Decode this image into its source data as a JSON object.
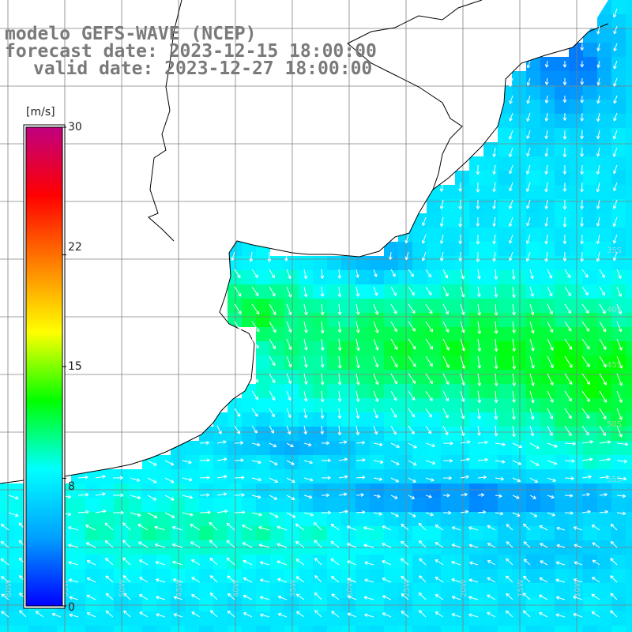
{
  "title": {
    "line1": "modelo GEFS-WAVE (NCEP)",
    "line2": "forecast date: 2023-12-15 18:00:00",
    "line3": "valid date: 2023-12-27 18:00:00"
  },
  "colorbar": {
    "unit": "[m/s]",
    "min": 0,
    "max": 30,
    "tick_labels": [
      "30",
      "22",
      "15",
      "8",
      "0"
    ],
    "tick_values": [
      30,
      22,
      15,
      8,
      0
    ],
    "colors": [
      "#0000ff",
      "#00a0ff",
      "#00ffff",
      "#00ff00",
      "#ffff00",
      "#ff8000",
      "#ff0000",
      "#c00080"
    ]
  },
  "map": {
    "land_color": "#ffffff",
    "coastline_color": "#000000",
    "grid_color": "#808080",
    "vector_color": "#ffffff",
    "faint_lat_labels": [
      "35S",
      "40S",
      "45S",
      "50S",
      "55S"
    ],
    "faint_lon_labels": [
      "60W",
      "55W",
      "50W",
      "45W",
      "40W",
      "35W",
      "30W",
      "25W",
      "20W",
      "15W",
      "10W"
    ]
  }
}
